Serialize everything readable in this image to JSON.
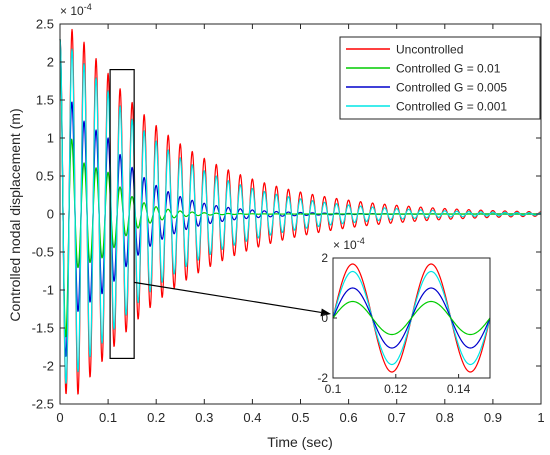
{
  "chart_data": [
    {
      "type": "line",
      "xlabel": "Time (sec)",
      "ylabel": "Controlled nodal displacement (m)",
      "y_scale_label": {
        "base": "× 10",
        "exponent": "-4"
      },
      "xlim": [
        0,
        1
      ],
      "ylim": [
        -2.5,
        2.5
      ],
      "x_ticks": [
        "0",
        "0.1",
        "0.2",
        "0.3",
        "0.4",
        "0.5",
        "0.6",
        "0.7",
        "0.8",
        "0.9",
        "1"
      ],
      "y_ticks": [
        "-2.5",
        "-2",
        "-1.5",
        "-1",
        "-0.5",
        "0",
        "0.5",
        "1",
        "1.5",
        "2",
        "2.5"
      ],
      "grid": false,
      "legend_position": "top-right",
      "signal": {
        "frequency_hz": 40,
        "initial_amplitude": 2.3,
        "decay_time_constant_s": 0.25,
        "units": "×10^-4 m"
      },
      "series": [
        {
          "name": "Uncontrolled",
          "color": "#ff0000",
          "amplitude_at_0.1s": 1.85,
          "amplitude_at_0.5s": 0.29,
          "amplitude_at_1s": 0.04
        },
        {
          "name": "Controlled G = 0.01",
          "color": "#00cc00",
          "amplitude_at_0.1s": 0.55,
          "amplitude_at_0.5s": 0.0,
          "amplitude_at_1s": 0.0
        },
        {
          "name": "Controlled G = 0.005",
          "color": "#0000cc",
          "amplitude_at_0.1s": 1.0,
          "amplitude_at_0.5s": 0.02,
          "amplitude_at_1s": 0.0
        },
        {
          "name": "Controlled G = 0.001",
          "color": "#00e5e5",
          "amplitude_at_0.1s": 1.62,
          "amplitude_at_0.5s": 0.2,
          "amplitude_at_1s": 0.01
        }
      ],
      "highlight_window": {
        "x": [
          0.1,
          0.15
        ],
        "y": [
          -1.9,
          1.9
        ]
      }
    },
    {
      "type": "line",
      "title": "",
      "xlim": [
        0.1,
        0.15
      ],
      "ylim": [
        -2,
        2
      ],
      "x_ticks": [
        "0.1",
        "0.12",
        "0.14"
      ],
      "y_ticks": [
        "-2",
        "0",
        "2"
      ],
      "y_scale_label": {
        "base": "× 10",
        "exponent": "-4"
      },
      "series": [
        {
          "name": "Uncontrolled",
          "color": "#ff0000",
          "amplitude": 1.8
        },
        {
          "name": "Controlled G = 0.01",
          "color": "#00cc00",
          "amplitude": 0.55
        },
        {
          "name": "Controlled G = 0.005",
          "color": "#0000cc",
          "amplitude": 1.0
        },
        {
          "name": "Controlled G = 0.001",
          "color": "#00e5e5",
          "amplitude": 1.55
        }
      ]
    }
  ]
}
